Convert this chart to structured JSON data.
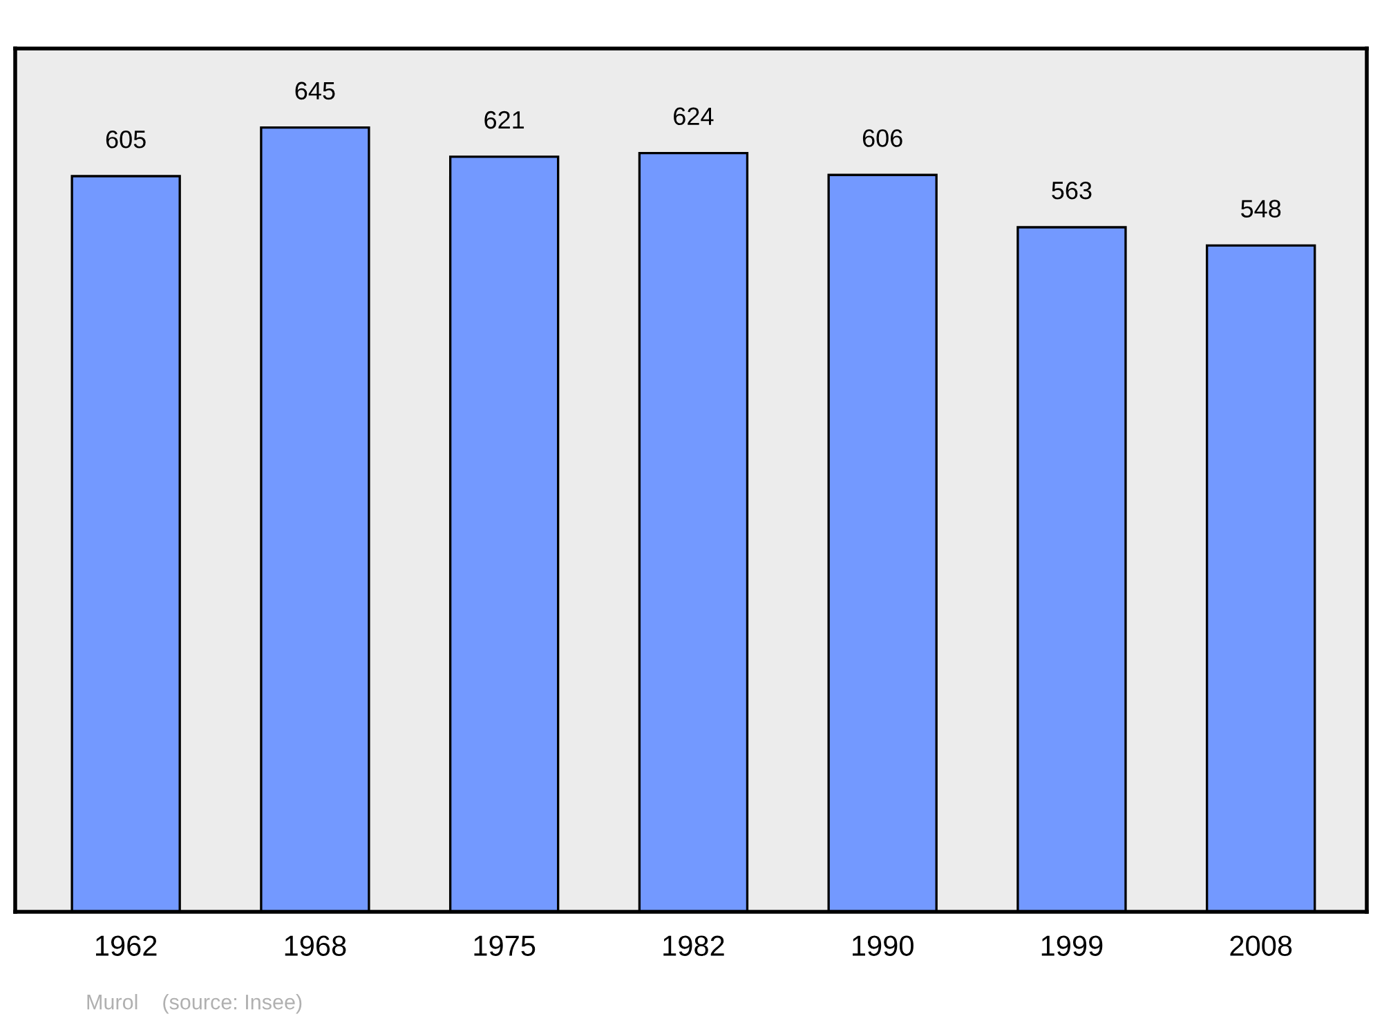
{
  "chart_data": {
    "type": "bar",
    "categories": [
      "1962",
      "1968",
      "1975",
      "1982",
      "1990",
      "1999",
      "2008"
    ],
    "values": [
      605,
      645,
      621,
      624,
      606,
      563,
      548
    ],
    "color": "#7399ff",
    "ylim": [
      0,
      710
    ],
    "data_labels": true,
    "grid": false,
    "tick_labels": "x",
    "annotations": [
      "Murol    (source: Insee)"
    ]
  }
}
